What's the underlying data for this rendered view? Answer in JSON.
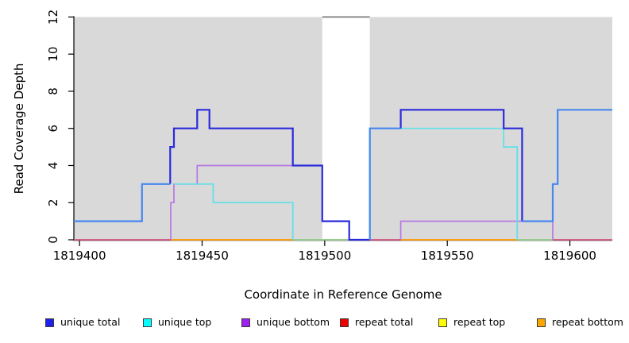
{
  "chart_data": {
    "type": "line",
    "subtype": "step",
    "title": "",
    "xlabel": "Coordinate in Reference Genome",
    "ylabel": "Read Coverage Depth",
    "xlim": [
      1819397.7,
      1819617.3
    ],
    "ylim": [
      0,
      12
    ],
    "x_ticks": [
      1819400,
      1819450,
      1819500,
      1819550,
      1819600
    ],
    "y_ticks": [
      0,
      2,
      4,
      6,
      8,
      10,
      12
    ],
    "grid": false,
    "legend_position": "bottom",
    "panel_color": "#d9d9d9",
    "shaded_regions": [
      {
        "from": 1819397.7,
        "to": 1819499
      },
      {
        "from": 1819518.4,
        "to": 1819617.3
      }
    ],
    "gap_region": {
      "from": 1819499,
      "to": 1819518.4,
      "marker_value": 12,
      "marker_color": "#8a8a8a"
    },
    "series": [
      {
        "name": "unique total",
        "color": "#2020ee",
        "steps": [
          [
            1819398,
            1
          ],
          [
            1819425.5,
            3
          ],
          [
            1819437,
            5
          ],
          [
            1819438.5,
            6
          ],
          [
            1819448,
            7
          ],
          [
            1819453,
            6
          ],
          [
            1819487,
            4
          ],
          [
            1819499,
            1
          ],
          [
            1819510,
            0
          ],
          [
            1819518.5,
            6
          ],
          [
            1819531,
            7
          ],
          [
            1819573,
            6
          ],
          [
            1819580.5,
            1
          ],
          [
            1819593,
            3
          ],
          [
            1819595,
            7
          ],
          [
            1819617,
            7
          ]
        ]
      },
      {
        "name": "unique top",
        "color": "#00ffff",
        "steps": [
          [
            1819398,
            1
          ],
          [
            1819425.5,
            3
          ],
          [
            1819454.5,
            2
          ],
          [
            1819487,
            0
          ],
          [
            1819518.5,
            6
          ],
          [
            1819573,
            5
          ],
          [
            1819579,
            0
          ],
          [
            1819593,
            3
          ],
          [
            1819595,
            7
          ],
          [
            1819617,
            7
          ]
        ]
      },
      {
        "name": "unique bottom",
        "color": "#a020f0",
        "steps": [
          [
            1819398,
            0
          ],
          [
            1819437,
            2
          ],
          [
            1819438.5,
            3
          ],
          [
            1819448,
            4
          ],
          [
            1819499,
            0
          ],
          [
            1819531,
            1
          ],
          [
            1819593,
            0
          ],
          [
            1819617,
            0
          ]
        ]
      },
      {
        "name": "repeat total",
        "color": "#ee0000",
        "steps": [
          [
            1819398,
            0
          ],
          [
            1819617,
            0
          ]
        ]
      },
      {
        "name": "repeat top",
        "color": "#ffff00",
        "steps": [
          [
            1819398,
            0
          ],
          [
            1819617,
            0
          ]
        ]
      },
      {
        "name": "repeat bottom",
        "color": "#ffa500",
        "steps": [
          [
            1819398,
            0
          ],
          [
            1819617,
            0
          ]
        ]
      }
    ],
    "render_layers": [
      {
        "name": "baseline-repeat-total",
        "color": "#d4547e",
        "width": 1.8,
        "points": [
          [
            1819397.7,
            0
          ],
          [
            1819617.3,
            0
          ]
        ]
      },
      {
        "name": "baseline-repeat-bottom-1",
        "color": "#ffa500",
        "width": 1.8,
        "points": [
          [
            1819437.2,
            0
          ],
          [
            1819487,
            0
          ]
        ]
      },
      {
        "name": "baseline-repeat-bottom-2",
        "color": "#ffa500",
        "width": 1.8,
        "points": [
          [
            1819531,
            0
          ],
          [
            1819578.5,
            0
          ]
        ]
      },
      {
        "name": "baseline-unique-top-zero-1",
        "color": "#8fd98f",
        "width": 1.8,
        "points": [
          [
            1819487,
            0
          ],
          [
            1819510,
            0
          ]
        ]
      },
      {
        "name": "baseline-unique-top-zero-2",
        "color": "#8fd98f",
        "width": 1.8,
        "points": [
          [
            1819578.5,
            0
          ],
          [
            1819593,
            0
          ]
        ]
      },
      {
        "name": "gap-top-marker",
        "color": "#8a8a8a",
        "width": 2,
        "points": [
          [
            1819499,
            12
          ],
          [
            1819518.4,
            12
          ]
        ]
      },
      {
        "name": "unique-bottom-a",
        "color": "#b778e2",
        "width": 1.7,
        "points": [
          [
            1819437.2,
            0
          ],
          [
            1819437.2,
            2
          ],
          [
            1819438.5,
            2
          ],
          [
            1819438.5,
            3
          ],
          [
            1819448,
            3
          ],
          [
            1819448,
            4
          ],
          [
            1819499,
            4
          ]
        ]
      },
      {
        "name": "unique-bottom-b",
        "color": "#b778e2",
        "width": 1.7,
        "points": [
          [
            1819531,
            0
          ],
          [
            1819531,
            1
          ],
          [
            1819593,
            1
          ],
          [
            1819593,
            0
          ]
        ]
      },
      {
        "name": "unique-top-a",
        "color": "#5fe0e8",
        "width": 1.7,
        "points": [
          [
            1819438.5,
            3
          ],
          [
            1819454.5,
            3
          ],
          [
            1819454.5,
            2
          ],
          [
            1819487,
            2
          ],
          [
            1819487,
            0
          ]
        ]
      },
      {
        "name": "unique-top-b",
        "color": "#5fe0e8",
        "width": 1.7,
        "points": [
          [
            1819518.4,
            0
          ],
          [
            1819518.4,
            6
          ],
          [
            1819573,
            6
          ],
          [
            1819573,
            5
          ],
          [
            1819578.5,
            5
          ],
          [
            1819578.5,
            0
          ]
        ]
      },
      {
        "name": "unique-total-dark-a",
        "color": "#2a2adc",
        "width": 2.2,
        "points": [
          [
            1819437,
            3
          ],
          [
            1819437,
            5
          ],
          [
            1819438.5,
            5
          ],
          [
            1819438.5,
            6
          ],
          [
            1819448,
            6
          ],
          [
            1819448,
            7
          ],
          [
            1819453,
            7
          ],
          [
            1819453,
            6
          ],
          [
            1819487,
            6
          ],
          [
            1819487,
            4
          ],
          [
            1819499,
            4
          ],
          [
            1819499,
            1
          ],
          [
            1819510,
            1
          ],
          [
            1819510,
            0
          ],
          [
            1819518.4,
            0
          ]
        ]
      },
      {
        "name": "unique-total-dark-b",
        "color": "#2a2adc",
        "width": 2.2,
        "points": [
          [
            1819531,
            6
          ],
          [
            1819531,
            7
          ],
          [
            1819573,
            7
          ],
          [
            1819573,
            6
          ],
          [
            1819580.5,
            6
          ],
          [
            1819580.5,
            1
          ]
        ]
      },
      {
        "name": "unique-total-bright-a",
        "color": "#4687f0",
        "width": 2.2,
        "points": [
          [
            1819397.7,
            1
          ],
          [
            1819425.5,
            1
          ],
          [
            1819425.5,
            3
          ],
          [
            1819437,
            3
          ]
        ]
      },
      {
        "name": "unique-total-bright-b",
        "color": "#4687f0",
        "width": 2.2,
        "points": [
          [
            1819518.4,
            0
          ],
          [
            1819518.4,
            6
          ],
          [
            1819531,
            6
          ]
        ]
      },
      {
        "name": "unique-total-bright-c",
        "color": "#4687f0",
        "width": 2.2,
        "points": [
          [
            1819580.5,
            1
          ],
          [
            1819593,
            1
          ],
          [
            1819593,
            3
          ],
          [
            1819595,
            3
          ],
          [
            1819595,
            7
          ],
          [
            1819617.3,
            7
          ]
        ]
      }
    ],
    "legend": [
      {
        "label": "unique total",
        "color": "#2020ee"
      },
      {
        "label": "unique top",
        "color": "#00ffff"
      },
      {
        "label": "unique bottom",
        "color": "#a020f0"
      },
      {
        "label": "repeat total",
        "color": "#ee0000"
      },
      {
        "label": "repeat top",
        "color": "#ffff00"
      },
      {
        "label": "repeat bottom",
        "color": "#ffa500"
      }
    ]
  }
}
